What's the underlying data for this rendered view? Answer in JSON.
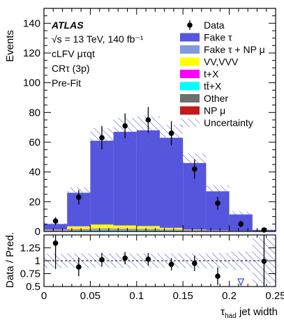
{
  "chart_data": [
    {
      "type": "bar",
      "stacked": true,
      "panel": "main",
      "label_lines": [
        "ATLAS",
        "√s = 13 TeV, 140 fb⁻¹",
        "cLFV μτqt",
        "CRτ (3p)",
        "Pre-Fit"
      ],
      "ylabel": "Events",
      "xlim": [
        0,
        0.25
      ],
      "ylim": [
        0,
        150
      ],
      "yticks": [
        0,
        20,
        40,
        60,
        80,
        100,
        120,
        140
      ],
      "bin_edges": [
        0,
        0.025,
        0.05,
        0.075,
        0.1,
        0.125,
        0.15,
        0.175,
        0.2,
        0.225,
        0.25
      ],
      "series": [
        {
          "name": "Other",
          "color": "#6e6e6e",
          "values": [
            0.3,
            0.5,
            0.6,
            0.6,
            0.6,
            0.5,
            0.3,
            0.2,
            0.1,
            0.05
          ]
        },
        {
          "name": "tt̄+X",
          "color": "#00ffff",
          "values": [
            0.2,
            0.5,
            0.7,
            0.6,
            0.6,
            0.4,
            0.2,
            0.1,
            0.05,
            0.0
          ]
        },
        {
          "name": "t+X",
          "color": "#ff00ff",
          "values": [
            0.2,
            0.4,
            0.5,
            0.5,
            0.4,
            0.3,
            0.2,
            0.1,
            0.05,
            0.0
          ]
        },
        {
          "name": "VV,VVV",
          "color": "#ffff00",
          "values": [
            0.5,
            2.0,
            2.8,
            2.3,
            2.0,
            1.2,
            0.6,
            0.3,
            0.1,
            0.0
          ]
        },
        {
          "name": "Fake τ + NP μ",
          "color": "#7f99dd",
          "values": [
            0.1,
            0.2,
            0.2,
            0.2,
            0.2,
            0.2,
            0.1,
            0.1,
            0.05,
            0.0
          ]
        },
        {
          "name": "NP μ",
          "color": "#c41a1a",
          "values": [
            0.0,
            0.0,
            0.0,
            0.0,
            0.0,
            0.0,
            0.0,
            0.0,
            0.0,
            0.0
          ]
        },
        {
          "name": "Fake τ",
          "color": "#5555dd",
          "values": [
            3.7,
            22.4,
            56.2,
            62.8,
            64.2,
            60.4,
            44.6,
            26.2,
            11.1,
            1.0
          ]
        }
      ],
      "uncertainty": {
        "name": "Uncertainty",
        "rel": [
          0.14,
          0.14,
          0.14,
          0.14,
          0.14,
          0.14,
          0.14,
          0.15,
          0.18,
          0.45
        ]
      },
      "data": {
        "name": "Data",
        "x": [
          0.0125,
          0.0375,
          0.0625,
          0.0875,
          0.1125,
          0.1375,
          0.1625,
          0.1875,
          0.2125,
          0.2375
        ],
        "y": [
          7,
          23,
          63,
          71,
          75,
          66,
          42,
          19,
          5,
          1
        ],
        "err": [
          2.6,
          4.8,
          7.9,
          8.4,
          8.7,
          8.1,
          6.5,
          4.4,
          2.2,
          1.0
        ]
      },
      "legend": {
        "placement": "top-right",
        "entries": [
          "Data",
          "Fake τ",
          "Fake τ + NP μ",
          "VV,VVV",
          "t+X",
          "tt̄+X",
          "Other",
          "NP μ",
          "Uncertainty"
        ]
      }
    },
    {
      "type": "scatter",
      "panel": "ratio",
      "ylabel": "Data / Pred.",
      "xlabel": "τhad jet width",
      "xlabel_main": "τ",
      "xlabel_sub": "had",
      "xlabel_rest": " jet width",
      "xlim": [
        0,
        0.25
      ],
      "ylim": [
        0.5,
        1.5
      ],
      "xticks": [
        0,
        0.05,
        0.1,
        0.15,
        0.2,
        0.25
      ],
      "xtick_labels": [
        "0",
        "0.05",
        "0.1",
        "0.15",
        "0.2",
        "0.25"
      ],
      "yticks": [
        0.5,
        0.75,
        1,
        1.25
      ],
      "ytick_labels": [
        "0.5",
        "0.75",
        "1",
        "1.25"
      ],
      "reference_line": 1,
      "x": [
        0.0125,
        0.0375,
        0.0625,
        0.0875,
        0.1125,
        0.1375,
        0.1625,
        0.1875,
        0.2375
      ],
      "y": [
        1.34,
        0.88,
        1.02,
        1.05,
        1.03,
        0.93,
        0.95,
        0.7,
        0.99
      ],
      "err_low": [
        0.5,
        0.18,
        0.13,
        0.12,
        0.12,
        0.12,
        0.15,
        0.17,
        0.6
      ],
      "err_high": [
        0.5,
        0.18,
        0.13,
        0.12,
        0.12,
        0.12,
        0.15,
        0.17,
        0.6
      ],
      "offscale_below": [
        0.2125
      ]
    }
  ]
}
